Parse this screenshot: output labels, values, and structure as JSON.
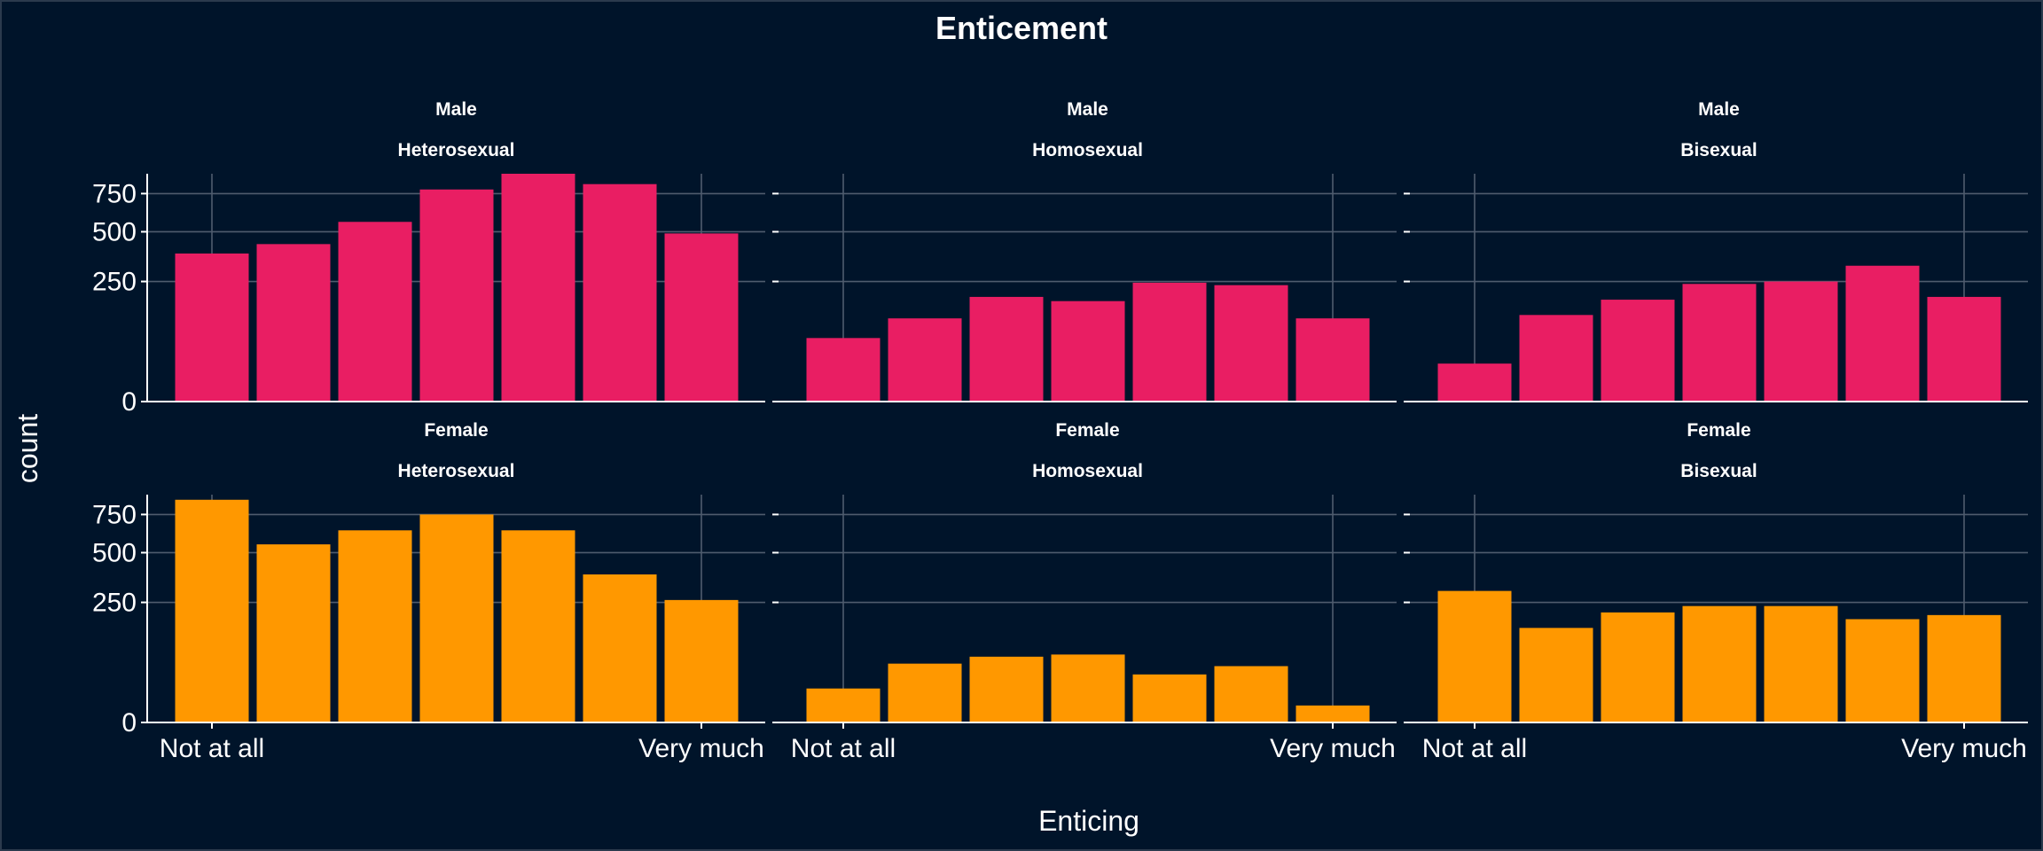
{
  "chart_data": {
    "type": "bar",
    "title": "Enticement",
    "xlabel": "Enticing",
    "ylabel": "count",
    "y_scale": "sqrt",
    "ylim": [
      0,
      900
    ],
    "y_ticks": [
      0,
      250,
      500,
      750
    ],
    "y_tick_labels": [
      "0",
      "250",
      "500",
      "750"
    ],
    "categories": [
      1,
      2,
      3,
      4,
      5,
      6,
      7
    ],
    "x_tick_labels": [
      "Not at all",
      "Very much"
    ],
    "x_tick_positions": [
      1,
      7
    ],
    "grid": true,
    "colors": {
      "Male": "#e91e63",
      "Female": "#ff9800",
      "background": "#00142a",
      "grid": "#4f5c6e"
    },
    "panels": [
      {
        "row": "Male",
        "col": "Heterosexual",
        "values": [
          380,
          430,
          560,
          780,
          900,
          820,
          490
        ]
      },
      {
        "row": "Male",
        "col": "Homosexual",
        "values": [
          70,
          120,
          190,
          175,
          245,
          235,
          120
        ]
      },
      {
        "row": "Male",
        "col": "Bisexual",
        "values": [
          25,
          130,
          180,
          240,
          250,
          320,
          190
        ]
      },
      {
        "row": "Female",
        "col": "Heterosexual",
        "values": [
          860,
          550,
          640,
          750,
          640,
          380,
          260
        ]
      },
      {
        "row": "Female",
        "col": "Homosexual",
        "values": [
          20,
          60,
          75,
          80,
          40,
          55,
          5
        ]
      },
      {
        "row": "Female",
        "col": "Bisexual",
        "values": [
          300,
          155,
          210,
          235,
          235,
          185,
          200
        ]
      }
    ]
  }
}
